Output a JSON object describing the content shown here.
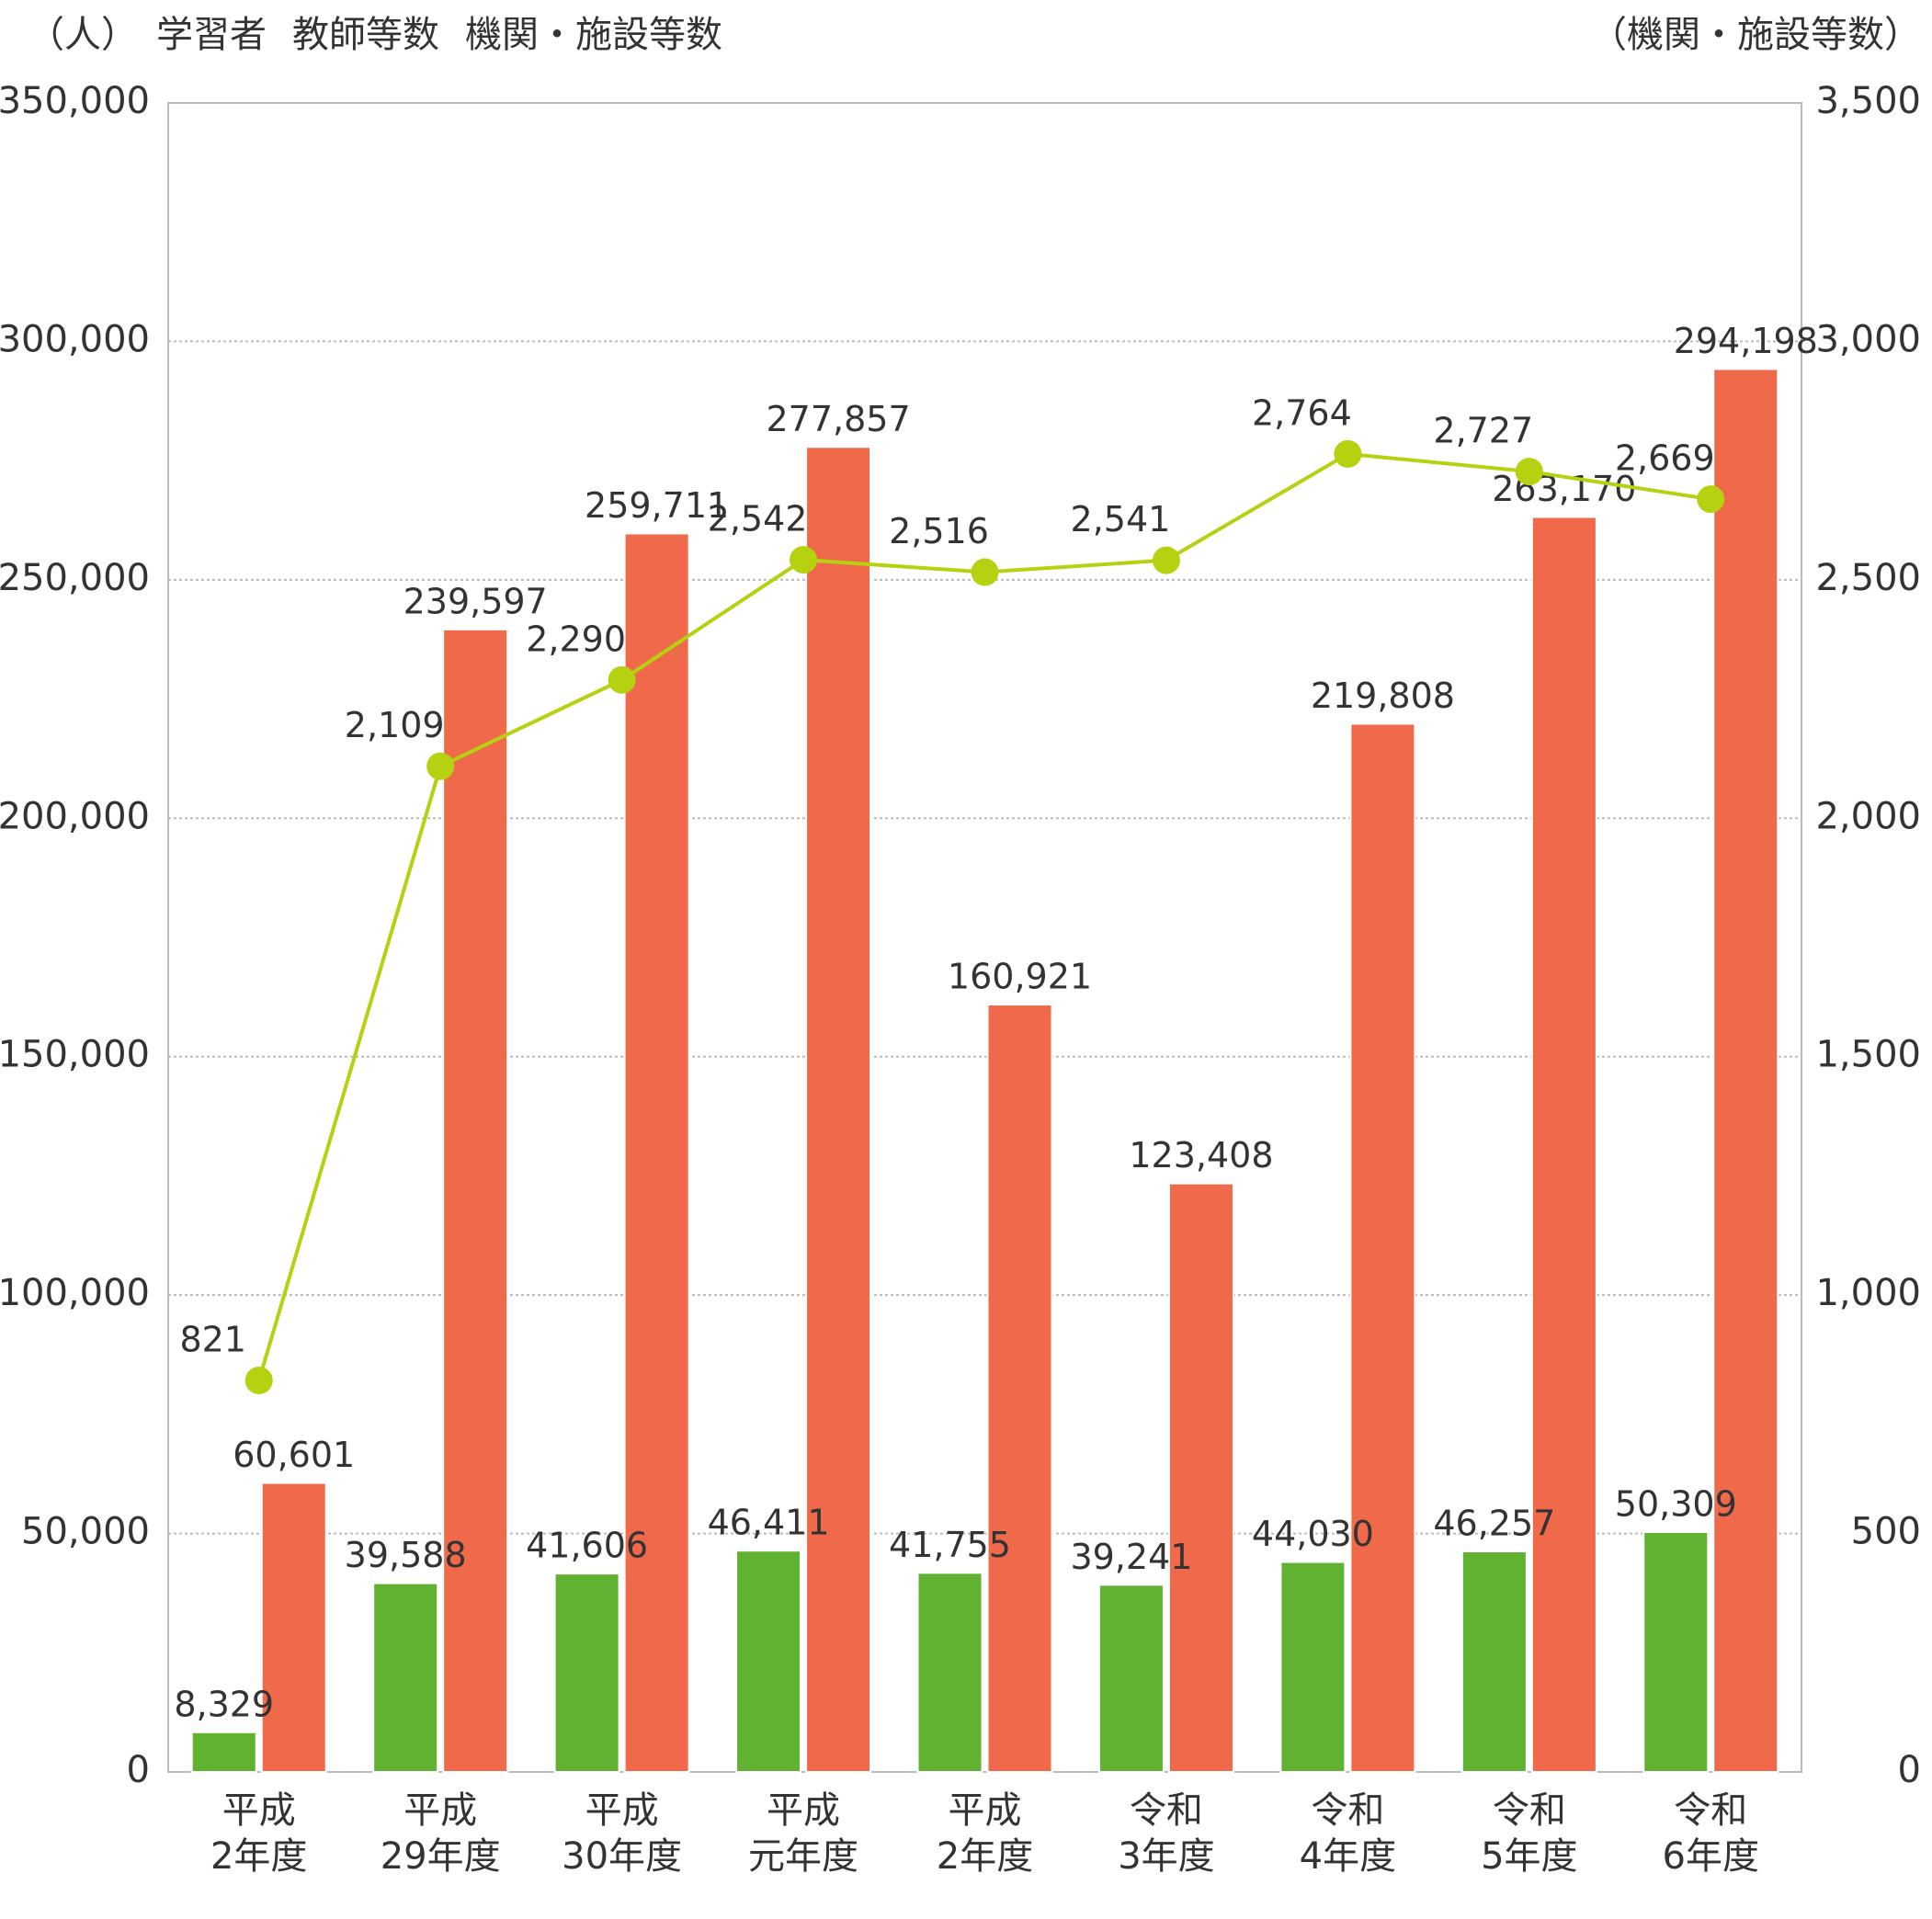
{
  "chart_data": {
    "type": "bar",
    "y_unit_label": "（人）",
    "y2_unit_label": "（機関・施設等数）",
    "categories": [
      [
        "平成",
        "2年度"
      ],
      [
        "平成",
        "29年度"
      ],
      [
        "平成",
        "30年度"
      ],
      [
        "平成",
        "元年度"
      ],
      [
        "平成",
        "2年度"
      ],
      [
        "令和",
        "3年度"
      ],
      [
        "令和",
        "4年度"
      ],
      [
        "令和",
        "5年度"
      ],
      [
        "令和",
        "6年度"
      ]
    ],
    "series": [
      {
        "name": "学習者",
        "color": "#f0694a",
        "type": "bar",
        "slot": 1,
        "values": [
          60601,
          239597,
          259711,
          277857,
          160921,
          123408,
          219808,
          263170,
          294198
        ],
        "value_labels": [
          "60,601",
          "239,597",
          "259,711",
          "277,857",
          "160,921",
          "123,408",
          "219,808",
          "263,170",
          "294,198"
        ]
      },
      {
        "name": "教師等数",
        "color": "#62b232",
        "type": "bar",
        "slot": 0,
        "values": [
          8329,
          39588,
          41606,
          46411,
          41755,
          39241,
          44030,
          46257,
          50309
        ],
        "value_labels": [
          "8,329",
          "39,588",
          "41,606",
          "46,411",
          "41,755",
          "39,241",
          "44,030",
          "46,257",
          "50,309"
        ]
      },
      {
        "name": "機関・施設等数",
        "color": "#b5d10f",
        "type": "line",
        "axis": "y2",
        "values": [
          821,
          2109,
          2290,
          2542,
          2516,
          2541,
          2764,
          2727,
          2669
        ],
        "value_labels": [
          "821",
          "2,109",
          "2,290",
          "2,542",
          "2,516",
          "2,541",
          "2,764",
          "2,727",
          "2,669"
        ]
      }
    ],
    "ylim": [
      0,
      350000
    ],
    "yticks": [
      0,
      {
        "value": 50000,
        "label": "50,000"
      },
      {
        "value": 100000,
        "label": "100,000"
      },
      {
        "value": 150000,
        "label": "150,000"
      },
      {
        "value": 200000,
        "label": "200,000"
      },
      {
        "value": 250000,
        "label": "250,000"
      },
      {
        "value": 300000,
        "label": "300,000"
      },
      {
        "value": 350000,
        "label": "350,000"
      }
    ],
    "y2lim": [
      0,
      3500
    ],
    "y2ticks": [
      0,
      500,
      {
        "value": 1000,
        "label": "1,000"
      },
      {
        "value": 1500,
        "label": "1,500"
      },
      {
        "value": 2000,
        "label": "2,000"
      },
      {
        "value": 2500,
        "label": "2,500"
      },
      {
        "value": 3000,
        "label": "3,000"
      },
      {
        "value": 3500,
        "label": "3,500"
      }
    ],
    "grid": true
  }
}
